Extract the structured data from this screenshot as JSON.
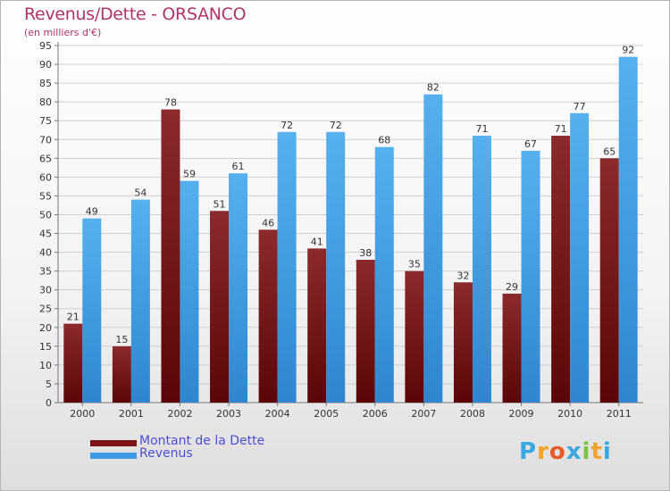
{
  "header": {
    "title": "Revenus/Dette - ORSANCO",
    "subtitle": "(en milliers d'€)"
  },
  "chart_data": {
    "type": "bar",
    "title": "Revenus/Dette - ORSANCO",
    "subtitle": "(en milliers d'€)",
    "xlabel": "",
    "ylabel": "",
    "ylim": [
      0,
      95
    ],
    "ytick_step": 5,
    "grid": true,
    "legend_position": "bottom-left",
    "categories": [
      "2000",
      "2001",
      "2002",
      "2003",
      "2004",
      "2005",
      "2006",
      "2007",
      "2008",
      "2009",
      "2010",
      "2011"
    ],
    "series": [
      {
        "name": "Montant de la Dette",
        "color": "#7a1416",
        "values": [
          21,
          15,
          78,
          51,
          46,
          41,
          38,
          35,
          32,
          29,
          71,
          65
        ]
      },
      {
        "name": "Revenus",
        "color": "#3d9be3",
        "values": [
          49,
          54,
          59,
          61,
          72,
          72,
          68,
          82,
          71,
          67,
          77,
          92
        ]
      }
    ]
  },
  "legend": {
    "items": [
      {
        "label": "Montant de la Dette",
        "color": "#7a1416"
      },
      {
        "label": "Revenus",
        "color": "#3d9be3"
      }
    ]
  },
  "branding": {
    "logo_text": "Proxiti"
  }
}
